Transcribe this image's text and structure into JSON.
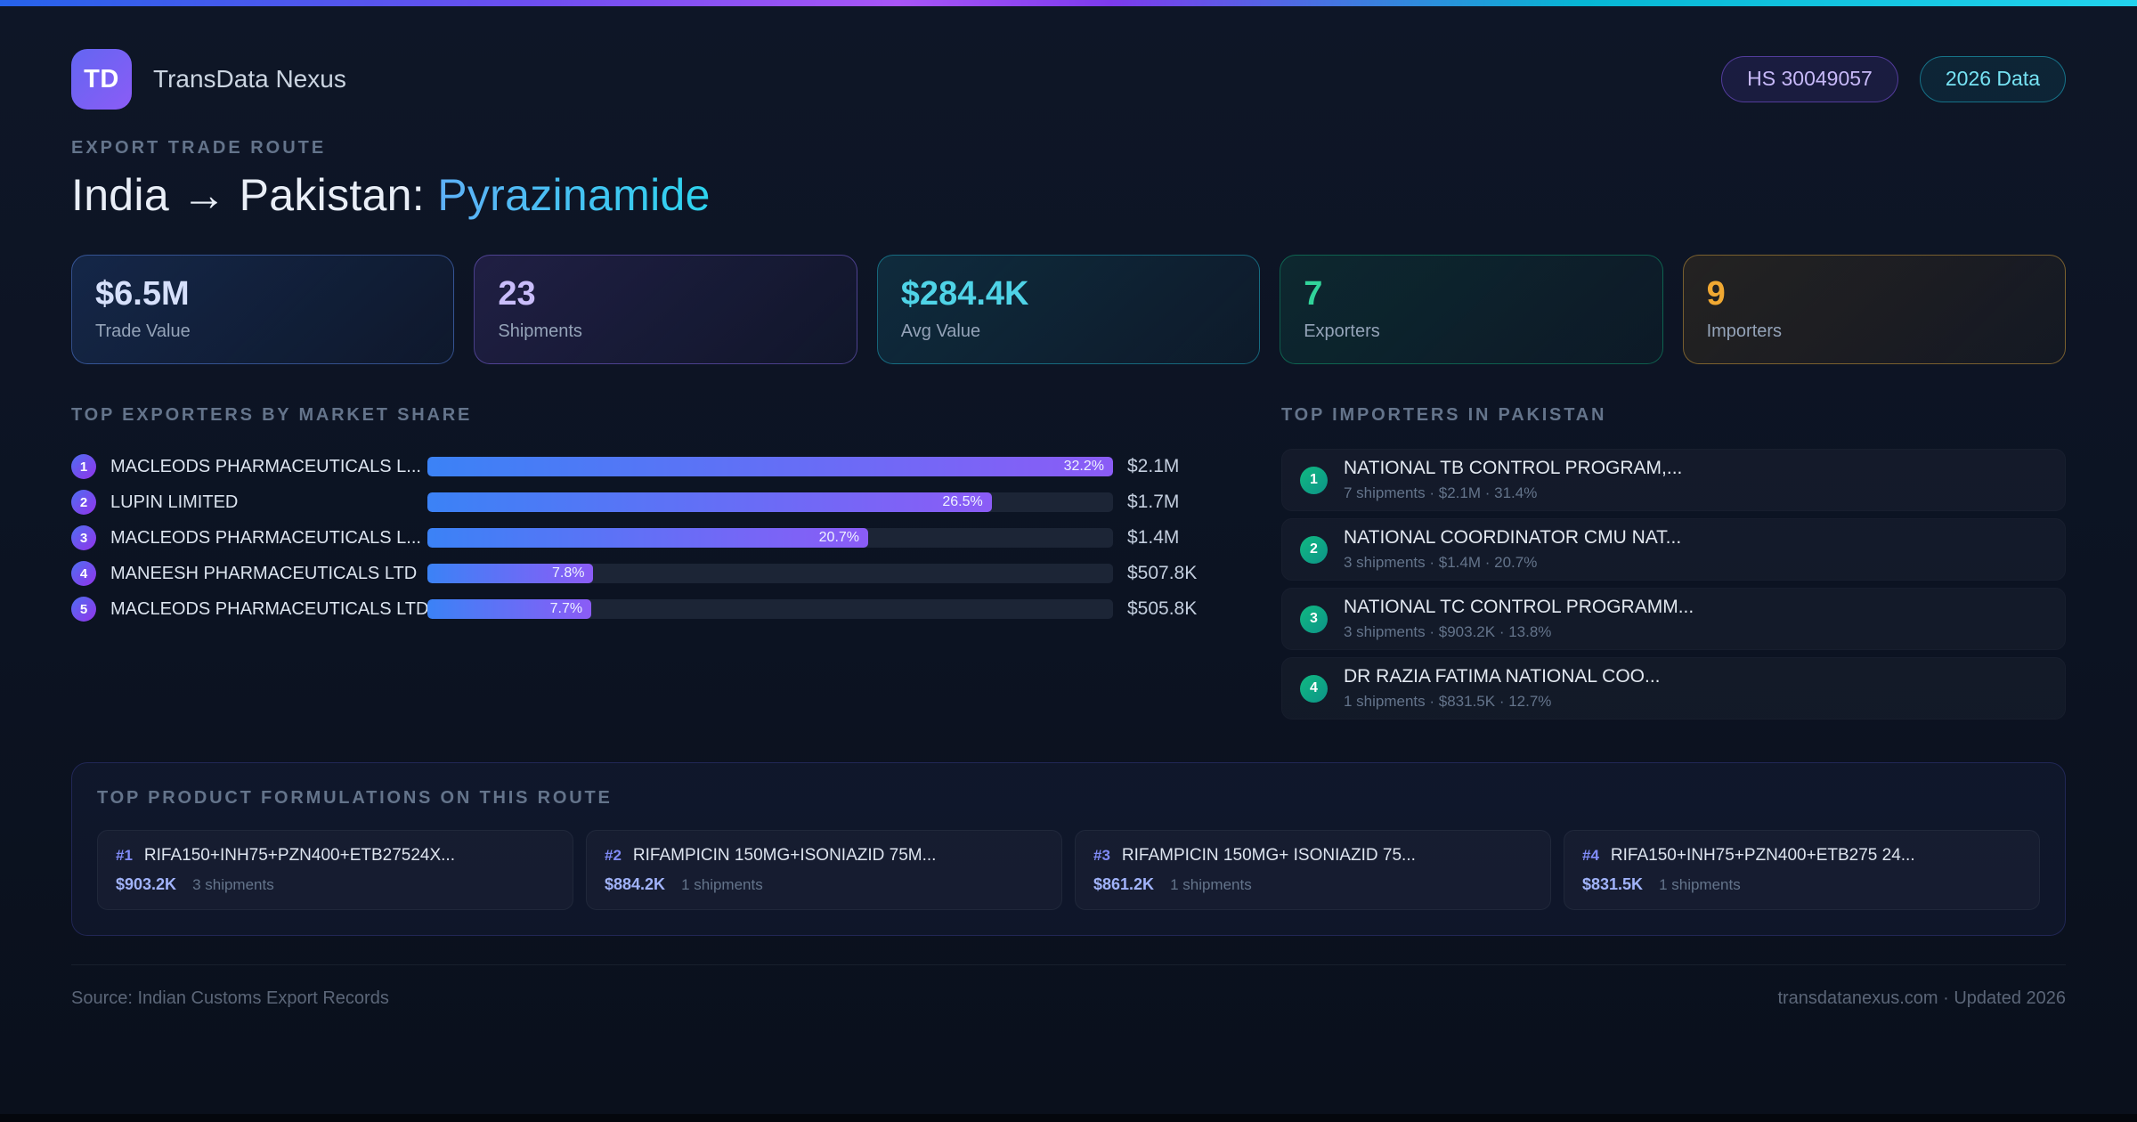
{
  "header": {
    "logo_text": "TD",
    "app_name": "TransData Nexus",
    "hs_badge": "HS 30049057",
    "year_badge": "2026 Data"
  },
  "hero": {
    "eyebrow": "EXPORT TRADE ROUTE",
    "title_main": "India → Pakistan:",
    "title_accent": "Pyrazinamide"
  },
  "stats": [
    {
      "value": "$6.5M",
      "label": "Trade Value"
    },
    {
      "value": "23",
      "label": "Shipments"
    },
    {
      "value": "$284.4K",
      "label": "Avg Value"
    },
    {
      "value": "7",
      "label": "Exporters"
    },
    {
      "value": "9",
      "label": "Importers"
    }
  ],
  "exporters": {
    "heading": "TOP EXPORTERS BY MARKET SHARE",
    "rows": [
      {
        "rank": "1",
        "name": "MACLEODS PHARMACEUTICALS L...",
        "share_pct": 32.2,
        "share_label": "32.2%",
        "value": "$2.1M"
      },
      {
        "rank": "2",
        "name": "LUPIN LIMITED",
        "share_pct": 26.5,
        "share_label": "26.5%",
        "value": "$1.7M"
      },
      {
        "rank": "3",
        "name": "MACLEODS PHARMACEUTICALS L...",
        "share_pct": 20.7,
        "share_label": "20.7%",
        "value": "$1.4M"
      },
      {
        "rank": "4",
        "name": "MANEESH PHARMACEUTICALS LTD",
        "share_pct": 7.8,
        "share_label": "7.8%",
        "value": "$507.8K"
      },
      {
        "rank": "5",
        "name": "MACLEODS PHARMACEUTICALS LTD",
        "share_pct": 7.7,
        "share_label": "7.7%",
        "value": "$505.8K"
      }
    ]
  },
  "importers": {
    "heading": "TOP IMPORTERS IN PAKISTAN",
    "rows": [
      {
        "rank": "1",
        "name": "NATIONAL TB CONTROL PROGRAM,...",
        "meta": "7 shipments · $2.1M · 31.4%"
      },
      {
        "rank": "2",
        "name": "NATIONAL COORDINATOR CMU NAT...",
        "meta": "3 shipments · $1.4M · 20.7%"
      },
      {
        "rank": "3",
        "name": "NATIONAL TC CONTROL PROGRAMM...",
        "meta": "3 shipments · $903.2K · 13.8%"
      },
      {
        "rank": "4",
        "name": "DR RAZIA FATIMA NATIONAL COO...",
        "meta": "1 shipments · $831.5K · 12.7%"
      }
    ]
  },
  "formulations": {
    "heading": "TOP PRODUCT FORMULATIONS ON THIS ROUTE",
    "cards": [
      {
        "rank": "#1",
        "name": "RIFA150+INH75+PZN400+ETB27524X...",
        "value": "$903.2K",
        "shipments": "3 shipments"
      },
      {
        "rank": "#2",
        "name": "RIFAMPICIN 150MG+ISONIAZID 75M...",
        "value": "$884.2K",
        "shipments": "1 shipments"
      },
      {
        "rank": "#3",
        "name": "RIFAMPICIN 150MG+ ISONIAZID 75...",
        "value": "$861.2K",
        "shipments": "1 shipments"
      },
      {
        "rank": "#4",
        "name": "RIFA150+INH75+PZN400+ETB275 24...",
        "value": "$831.5K",
        "shipments": "1 shipments"
      }
    ]
  },
  "footer": {
    "source": "Source: Indian Customs Export Records",
    "site": "transdatanexus.com · Updated 2026"
  },
  "colors": {
    "accent_blue": "#3b82f6",
    "accent_purple": "#8b5cf6",
    "accent_cyan": "#22d3ee",
    "accent_green": "#10b981",
    "accent_amber": "#f59e0b"
  },
  "chart_data": {
    "type": "bar",
    "orientation": "horizontal",
    "title": "TOP EXPORTERS BY MARKET SHARE",
    "categories": [
      "MACLEODS PHARMACEUTICALS L...",
      "LUPIN LIMITED",
      "MACLEODS PHARMACEUTICALS L...",
      "MANEESH PHARMACEUTICALS LTD",
      "MACLEODS PHARMACEUTICALS LTD"
    ],
    "values": [
      32.2,
      26.5,
      20.7,
      7.8,
      7.7
    ],
    "value_labels": [
      "$2.1M",
      "$1.7M",
      "$1.4M",
      "$507.8K",
      "$505.8K"
    ],
    "unit": "%",
    "xlim": [
      0,
      32.2
    ],
    "note": "bar lengths normalized to the maximum share (32.2% = full width)"
  }
}
